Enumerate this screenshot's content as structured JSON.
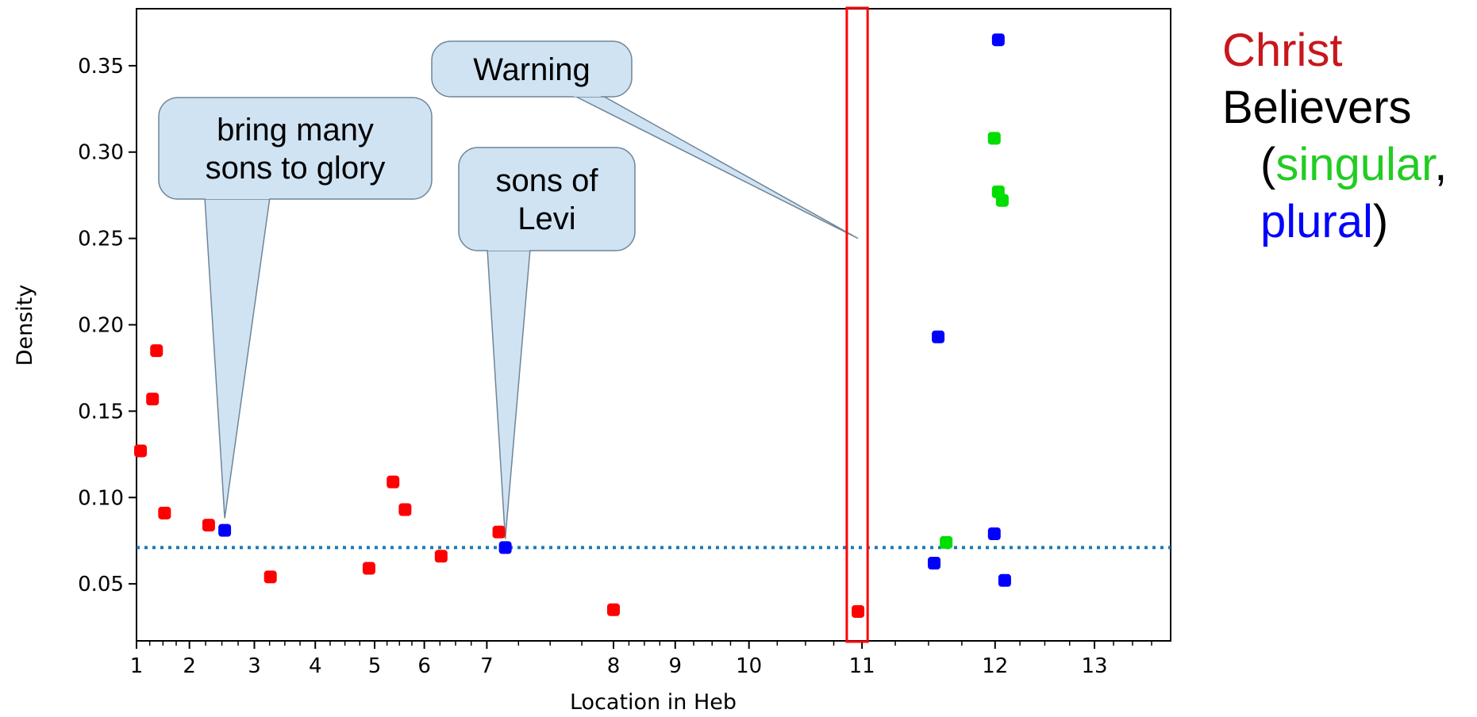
{
  "chart_data": {
    "type": "scatter",
    "xlabel": "Location in Heb",
    "ylabel": "Density",
    "xlim": [
      1,
      13.9
    ],
    "ylim": [
      0.017,
      0.383
    ],
    "x_ticks": [
      {
        "value": 1,
        "label": "1"
      },
      {
        "value": 1.66,
        "label": "2"
      },
      {
        "value": 2.47,
        "label": "3"
      },
      {
        "value": 3.23,
        "label": "4"
      },
      {
        "value": 3.97,
        "label": "5"
      },
      {
        "value": 4.59,
        "label": "6"
      },
      {
        "value": 5.37,
        "label": "7"
      },
      {
        "value": 6.95,
        "label": "8"
      },
      {
        "value": 7.72,
        "label": "9"
      },
      {
        "value": 8.64,
        "label": "10"
      },
      {
        "value": 10.05,
        "label": "11"
      },
      {
        "value": 11.71,
        "label": "12"
      },
      {
        "value": 12.95,
        "label": "13"
      }
    ],
    "y_ticks": [
      0.05,
      0.1,
      0.15,
      0.2,
      0.25,
      0.3,
      0.35
    ],
    "reference_line": {
      "y": 0.071,
      "style": "dotted",
      "color": "#1f77b4"
    },
    "series": [
      {
        "color": "#ff0000",
        "points": [
          [
            1.05,
            0.127
          ],
          [
            1.2,
            0.157
          ],
          [
            1.25,
            0.185
          ],
          [
            1.35,
            0.091
          ],
          [
            1.9,
            0.084
          ],
          [
            2.67,
            0.054
          ],
          [
            3.9,
            0.059
          ],
          [
            4.2,
            0.109
          ],
          [
            4.35,
            0.093
          ],
          [
            4.8,
            0.066
          ],
          [
            5.52,
            0.08
          ],
          [
            6.95,
            0.035
          ],
          [
            10.0,
            0.034
          ]
        ]
      },
      {
        "color": "#0000ff",
        "points": [
          [
            2.1,
            0.081
          ],
          [
            5.6,
            0.071
          ],
          [
            11.0,
            0.193
          ],
          [
            10.95,
            0.062
          ],
          [
            11.7,
            0.079
          ],
          [
            11.75,
            0.365
          ],
          [
            11.83,
            0.052
          ]
        ]
      },
      {
        "color": "#00dd00",
        "points": [
          [
            11.1,
            0.074
          ],
          [
            11.7,
            0.308
          ],
          [
            11.75,
            0.277
          ],
          [
            11.8,
            0.272
          ]
        ]
      }
    ],
    "highlight_box": {
      "x_from": 9.86,
      "x_to": 10.12,
      "color": "#ff0000"
    },
    "callouts": [
      {
        "lines": [
          "bring many",
          "sons to glory"
        ],
        "target": [
          2.1,
          0.088
        ]
      },
      {
        "lines": [
          "sons of",
          "Levi"
        ],
        "target": [
          5.6,
          0.076
        ]
      },
      {
        "lines": [
          "Warning"
        ],
        "target": [
          10.0,
          0.25
        ]
      }
    ],
    "legend": {
      "christ": "Christ",
      "believers": "Believers",
      "open_paren": "(",
      "singular": "singular",
      "comma": ",",
      "plural": "plural",
      "close_paren": ")",
      "colors": {
        "christ": "#c8161d",
        "singular": "#22cc22",
        "plural": "#0000ff"
      }
    }
  }
}
